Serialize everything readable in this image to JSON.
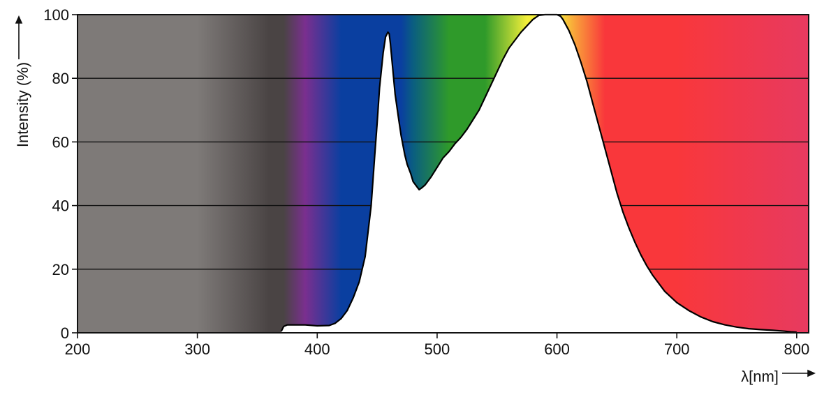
{
  "chart_data": {
    "type": "area",
    "title": "",
    "xlabel": "λ[nm]",
    "ylabel": "Intensity (%)",
    "xlim": [
      200,
      810
    ],
    "ylim": [
      0,
      100
    ],
    "x_ticks": [
      200,
      300,
      400,
      500,
      600,
      700,
      800
    ],
    "y_ticks": [
      0,
      20,
      40,
      60,
      80,
      100
    ],
    "grid": "horizontal",
    "legend": "none",
    "background": "visible spectrum color gradient",
    "spectrum_colors": {
      "uv": "#7e7a78",
      "uv_dark": "#4a4444",
      "violet": "#7a2f8f",
      "blue": "#0a3fa0",
      "cyan": "#0a5e80",
      "green": "#2f9a2a",
      "yellow": "#f4ef3a",
      "orange": "#f9a23a",
      "red": "#f9373b",
      "magenta": "#e73a60",
      "curve_fill": "#ffffff",
      "curve_line": "#000000"
    },
    "series": [
      {
        "x": [
          370,
          372,
          375,
          380,
          390,
          400,
          410,
          415,
          420,
          425,
          430,
          435,
          440,
          445,
          448,
          450,
          452,
          455,
          457,
          459,
          460,
          461,
          462,
          463,
          465,
          468,
          470,
          473,
          475,
          478,
          480,
          483,
          485,
          487,
          490,
          495,
          500,
          505,
          510,
          515,
          520,
          525,
          530,
          535,
          540,
          545,
          550,
          555,
          560,
          565,
          570,
          575,
          580,
          585,
          590,
          593,
          595,
          597,
          600,
          603,
          605,
          610,
          615,
          620,
          625,
          630,
          635,
          640,
          645,
          650,
          655,
          660,
          665,
          670,
          675,
          680,
          690,
          700,
          710,
          720,
          730,
          740,
          750,
          760,
          770,
          780,
          790,
          795,
          800
        ],
        "y": [
          0.5,
          2,
          2.5,
          2.5,
          2.5,
          2.2,
          2.3,
          3,
          4.5,
          7,
          11,
          16,
          24,
          40,
          56,
          66,
          77,
          88,
          93,
          94.5,
          94,
          91,
          87,
          83,
          75,
          67,
          62,
          56,
          53,
          50,
          47.5,
          46,
          45,
          45.5,
          46.5,
          49,
          52,
          55,
          57,
          59.5,
          61.5,
          64,
          67,
          70,
          74,
          78,
          82,
          86,
          89.5,
          92,
          94.5,
          96.5,
          98.5,
          99.8,
          100.5,
          101,
          101,
          101,
          100.5,
          99.5,
          98.5,
          95,
          90.5,
          85,
          79,
          72,
          65,
          58,
          51,
          44,
          38,
          33,
          28.5,
          24.5,
          21,
          18,
          13,
          9.5,
          7,
          5,
          3.5,
          2.5,
          1.8,
          1.3,
          1,
          0.8,
          0.5,
          0.3,
          0.2
        ]
      }
    ]
  }
}
